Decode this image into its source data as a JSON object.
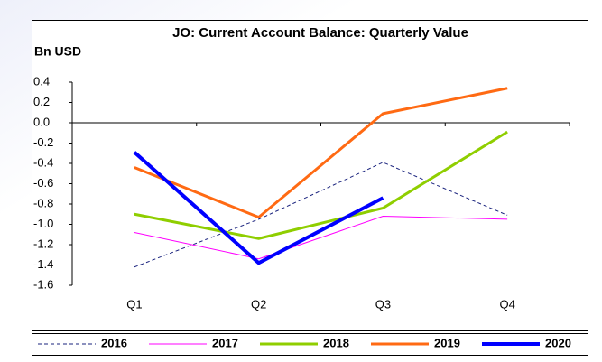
{
  "chart_data": {
    "type": "line",
    "title": "JO: Current Account Balance: Quarterly Value",
    "y_label": "Bn USD",
    "categories": [
      "Q1",
      "Q2",
      "Q3",
      "Q4"
    ],
    "series": [
      {
        "name": "2016",
        "color": "#1a237e",
        "dashed": true,
        "width": 1,
        "values": [
          -1.42,
          -0.95,
          -0.39,
          -0.91
        ]
      },
      {
        "name": "2017",
        "color": "#ff00ff",
        "width": 1,
        "values": [
          -1.08,
          -1.34,
          -0.92,
          -0.95
        ]
      },
      {
        "name": "2018",
        "color": "#8fce00",
        "width": 3,
        "values": [
          -0.9,
          -1.14,
          -0.84,
          -0.09
        ]
      },
      {
        "name": "2019",
        "color": "#ff6a13",
        "width": 3,
        "values": [
          -0.44,
          -0.93,
          0.09,
          0.34
        ]
      },
      {
        "name": "2020",
        "color": "#0000ff",
        "width": 4,
        "values": [
          -0.29,
          -1.38,
          -0.74,
          null
        ]
      }
    ],
    "ylim": [
      -1.6,
      0.4
    ],
    "yticks": [
      0.4,
      0.2,
      {
        "value": 0,
        "label": "0.0"
      },
      -0.2,
      -0.4,
      -0.6,
      -0.8,
      {
        "value": -1,
        "label": "-1.0"
      },
      -1.2,
      -1.4,
      -1.6
    ],
    "grid": false,
    "legend": "bottom"
  }
}
